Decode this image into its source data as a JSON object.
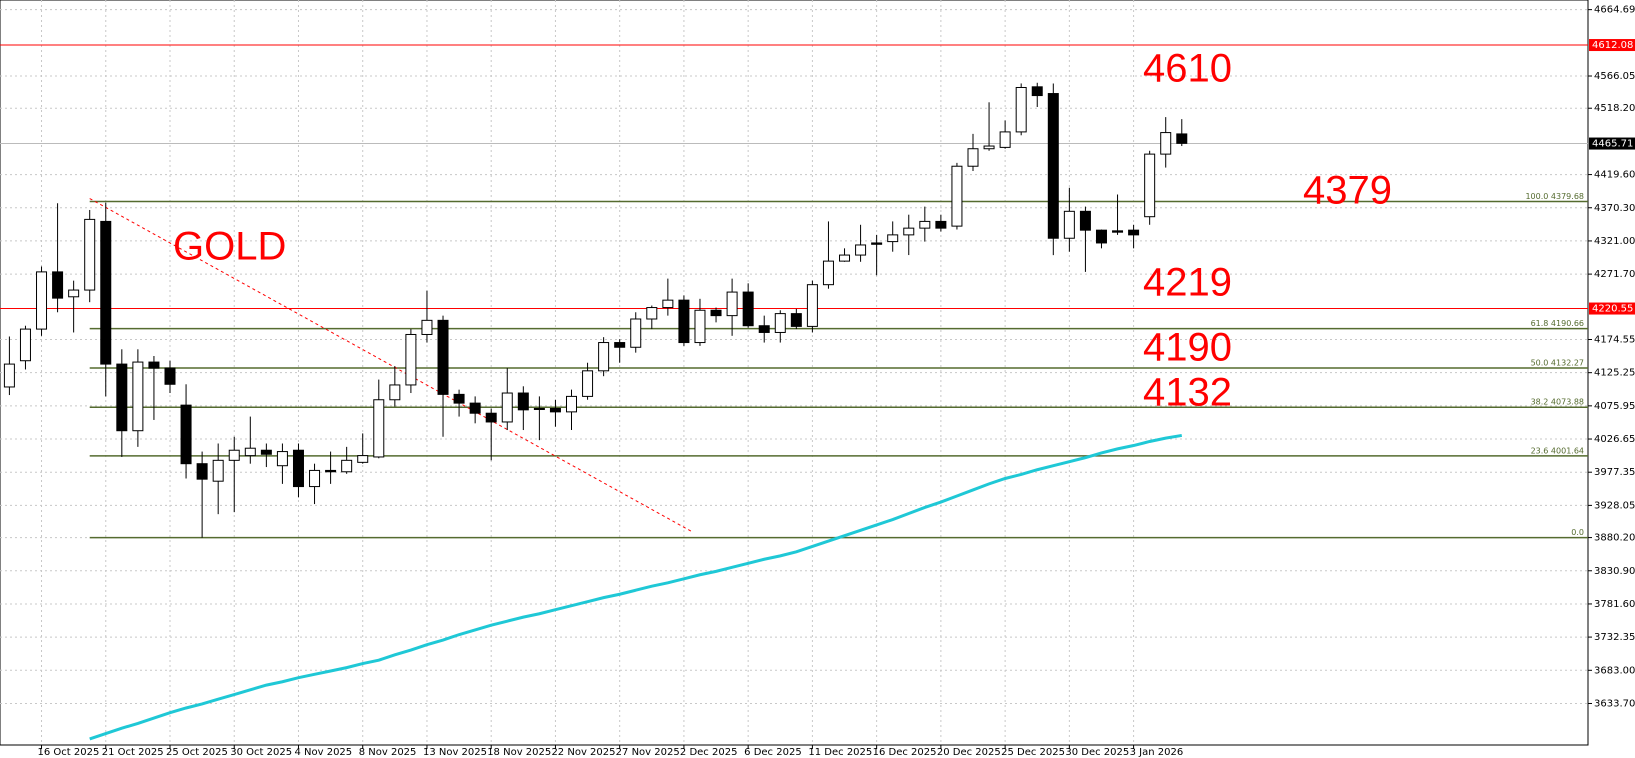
{
  "chart_data": {
    "type": "candlestick",
    "categories": [
      null,
      null,
      "16 Oct 2025",
      null,
      null,
      null,
      "21 Oct 2025",
      null,
      null,
      null,
      "25 Oct 2025",
      null,
      null,
      null,
      "30 Oct 2025",
      null,
      null,
      null,
      "4 Nov 2025",
      null,
      null,
      null,
      "8 Nov 2025",
      null,
      null,
      null,
      "13 Nov 2025",
      null,
      null,
      null,
      "18 Nov 2025",
      null,
      null,
      null,
      "22 Nov 2025",
      null,
      null,
      null,
      "27 Nov 2025",
      null,
      null,
      null,
      "2 Dec 2025",
      null,
      null,
      null,
      "6 Dec 2025",
      null,
      null,
      null,
      "11 Dec 2025",
      null,
      null,
      null,
      "16 Dec 2025",
      null,
      null,
      null,
      "20 Dec 2025",
      null,
      null,
      null,
      "25 Dec 2025",
      null,
      null,
      null,
      "30 Dec 2025",
      null,
      null,
      null,
      "3 Jan 2026",
      null,
      null,
      null
    ],
    "open": [
      4104,
      4143,
      4190,
      4275,
      4238,
      4248,
      4350,
      4138,
      4039,
      4141,
      4132,
      4077,
      3990,
      3964,
      3995,
      4002,
      4010,
      3987,
      4010,
      3956,
      3980,
      3978,
      3992,
      4000,
      4085,
      4107,
      4182,
      4203,
      4093,
      4080,
      4065,
      4052,
      4095,
      4072,
      4072,
      4067,
      4090,
      4128,
      4170,
      4163,
      4205,
      4222,
      4233,
      4170,
      4218,
      4210,
      4245,
      4195,
      4185,
      4213,
      4194,
      4256,
      4291,
      4300,
      4318,
      4320,
      4330,
      4340,
      4350,
      4343,
      4432,
      4458,
      4460,
      4483,
      4550,
      4540,
      4325,
      4365,
      4337,
      4336,
      4337,
      4357,
      4450,
      4480
    ],
    "high": [
      4179,
      4195,
      4283,
      4377,
      4262,
      4367,
      4378,
      4160,
      4160,
      4150,
      4143,
      4108,
      4008,
      4020,
      4030,
      4060,
      4020,
      4020,
      4020,
      3990,
      4008,
      4015,
      4035,
      4115,
      4135,
      4190,
      4247,
      4210,
      4100,
      4090,
      4072,
      4132,
      4105,
      4090,
      4085,
      4100,
      4140,
      4178,
      4175,
      4215,
      4225,
      4265,
      4240,
      4235,
      4222,
      4265,
      4258,
      4210,
      4218,
      4220,
      4262,
      4350,
      4310,
      4345,
      4330,
      4350,
      4360,
      4372,
      4360,
      4437,
      4480,
      4527,
      4500,
      4555,
      4556,
      4555,
      4400,
      4372,
      4338,
      4390,
      4345,
      4455,
      4505,
      4502
    ],
    "low": [
      4092,
      4130,
      4180,
      4215,
      4185,
      4230,
      4090,
      4000,
      4015,
      4055,
      4095,
      3968,
      3880,
      3915,
      3918,
      3990,
      3985,
      3960,
      3940,
      3930,
      3960,
      3975,
      3990,
      3998,
      4075,
      4095,
      4170,
      4030,
      4060,
      4050,
      3995,
      4040,
      4040,
      4025,
      4045,
      4040,
      4085,
      4120,
      4140,
      4155,
      4190,
      4210,
      4165,
      4165,
      4200,
      4180,
      4192,
      4170,
      4170,
      4190,
      4185,
      4250,
      4290,
      4290,
      4270,
      4305,
      4300,
      4320,
      4335,
      4338,
      4425,
      4455,
      4458,
      4478,
      4520,
      4300,
      4305,
      4275,
      4310,
      4330,
      4310,
      4345,
      4430,
      4462
    ],
    "close": [
      4138,
      4190,
      4275,
      4236,
      4248,
      4353,
      4138,
      4039,
      4141,
      4132,
      4108,
      3990,
      3967,
      3995,
      4010,
      4013,
      4004,
      4008,
      3956,
      3980,
      3978,
      3995,
      4002,
      4085,
      4107,
      4182,
      4203,
      4093,
      4080,
      4065,
      4052,
      4095,
      4070,
      4071,
      4067,
      4090,
      4128,
      4170,
      4163,
      4205,
      4222,
      4233,
      4170,
      4218,
      4210,
      4245,
      4195,
      4185,
      4213,
      4194,
      4256,
      4291,
      4300,
      4315,
      4316,
      4330,
      4340,
      4350,
      4340,
      4432,
      4458,
      4462,
      4483,
      4549,
      4537,
      4325,
      4365,
      4337,
      4318,
      4334,
      4330,
      4450,
      4482,
      4466
    ],
    "up_color": "#ffffff",
    "down_color": "#000000",
    "ma": {
      "color": "#1fc8d6",
      "values": [
        null,
        null,
        null,
        null,
        null,
        3581,
        3589,
        3597,
        3604,
        3612,
        3620,
        3627,
        3633,
        3640,
        3647,
        3654,
        3661,
        3666,
        3672,
        3677,
        3682,
        3687,
        3693,
        3698,
        3706,
        3713,
        3721,
        3728,
        3736,
        3743,
        3750,
        3756,
        3762,
        3767,
        3773,
        3779,
        3785,
        3791,
        3796,
        3802,
        3808,
        3813,
        3819,
        3825,
        3830,
        3836,
        3842,
        3848,
        3853,
        3859,
        3867,
        3875,
        3883,
        3891,
        3899,
        3907,
        3916,
        3925,
        3933,
        3942,
        3951,
        3960,
        3968,
        3974,
        3981,
        3987,
        3993,
        3999,
        4006,
        4012,
        4017,
        4023,
        4028,
        4032
      ]
    },
    "ylim": [
      3572,
      4679
    ],
    "yticks": [
      4664.69,
      4566.05,
      {
        "value": 4518.2,
        "label": "4518.20"
      },
      {
        "value": 4419.6,
        "label": "4419.60"
      },
      {
        "value": 4370.3,
        "label": "4370.30"
      },
      {
        "value": 4321,
        "label": "4321.00"
      },
      {
        "value": 4271.7,
        "label": "4271.70"
      },
      4174.55,
      4125.25,
      4075.95,
      4026.65,
      3977.35,
      3928.05,
      {
        "value": 3880.2,
        "label": "3880.20"
      },
      {
        "value": 3830.9,
        "label": "3830.90"
      },
      {
        "value": 3781.6,
        "label": "3781.60"
      },
      3732.35,
      {
        "value": 3683,
        "label": "3683.00"
      },
      {
        "value": 3633.7,
        "label": "3633.70"
      }
    ],
    "grid": true,
    "hlines": [
      {
        "value": 4612.08,
        "color": "#ff0000"
      },
      {
        "value": 4220.55,
        "color": "#ff0000"
      },
      {
        "value": 4465.71,
        "color": "#000000"
      }
    ],
    "fib_color": "#556b2f",
    "levels": [
      {
        "value": 4379.68,
        "label": "100.0 4379.68"
      },
      {
        "value": 4190.66,
        "label": "61.8 4190.66"
      },
      {
        "value": 4132.27,
        "label": "50.0 4132.27"
      },
      {
        "value": 4073.88,
        "label": "38.2 4073.88"
      },
      {
        "value": 4001.64,
        "label": "23.6 4001.64"
      },
      {
        "value": 3880.2,
        "label": "0.0"
      }
    ],
    "trendline": {
      "color": "#ff0000",
      "start": [
        5,
        4384
      ],
      "end": [
        42.5,
        3889
      ]
    },
    "annotations": [
      "4610",
      "4379",
      "4219",
      "4190",
      "4132",
      "GOLD"
    ]
  }
}
